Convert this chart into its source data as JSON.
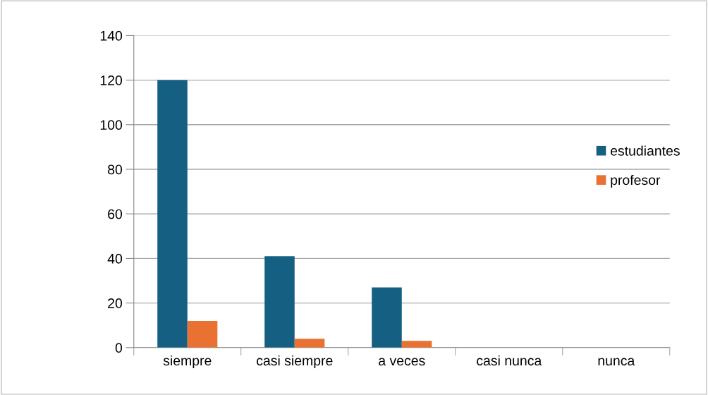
{
  "chart_data": {
    "type": "bar",
    "categories": [
      "siempre",
      "casi siempre",
      "a veces",
      "casi nunca",
      "nunca"
    ],
    "series": [
      {
        "name": "estudiantes",
        "color": "#156082",
        "values": [
          120,
          41,
          27,
          0,
          0
        ]
      },
      {
        "name": "profesor",
        "color": "#e97132",
        "values": [
          12,
          4,
          3,
          0,
          0
        ]
      }
    ],
    "ylim": [
      0,
      140
    ],
    "yticks": [
      0,
      20,
      40,
      60,
      80,
      100,
      120,
      140
    ],
    "grid": "y",
    "legend": "right"
  }
}
